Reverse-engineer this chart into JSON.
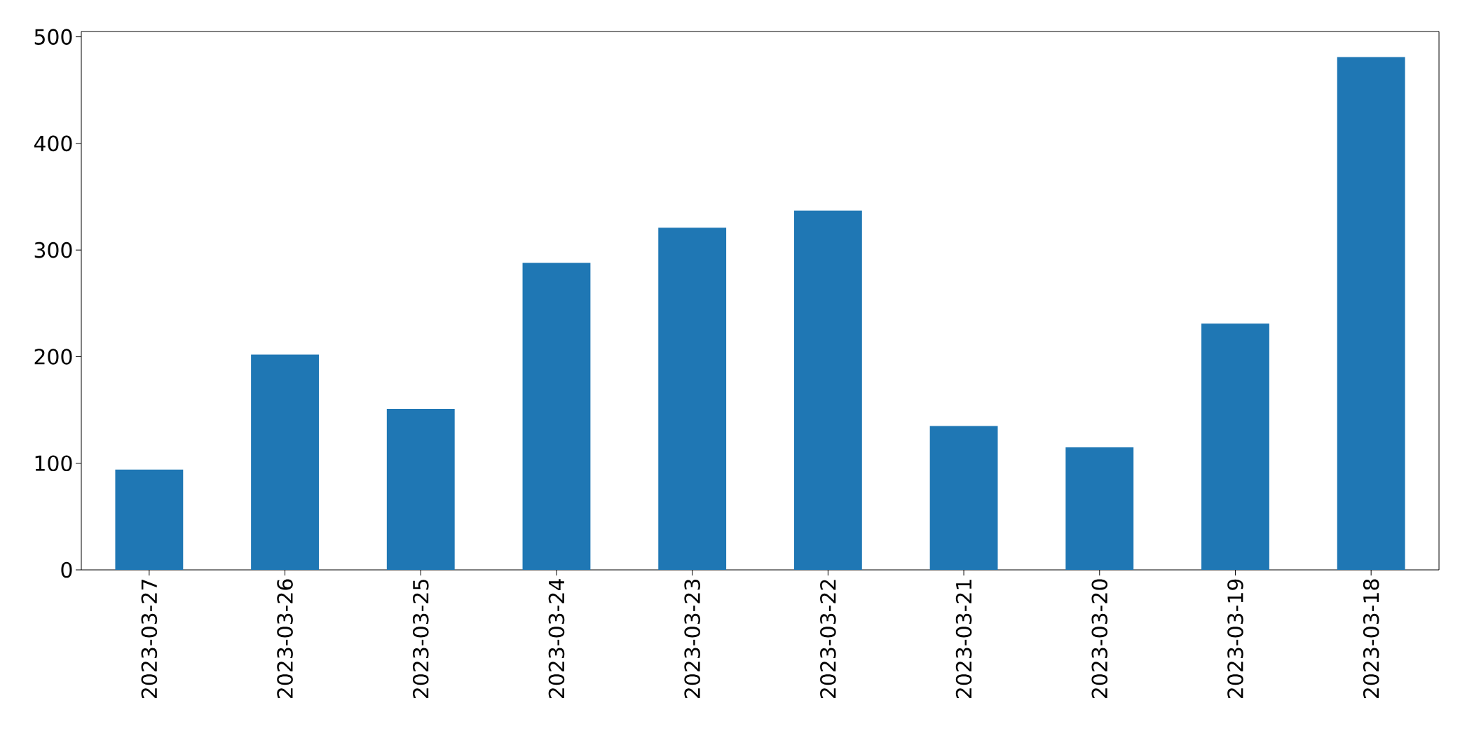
{
  "chart_data": {
    "type": "bar",
    "categories": [
      "2023-03-27",
      "2023-03-26",
      "2023-03-25",
      "2023-03-24",
      "2023-03-23",
      "2023-03-22",
      "2023-03-21",
      "2023-03-20",
      "2023-03-19",
      "2023-03-18"
    ],
    "values": [
      94,
      202,
      151,
      288,
      321,
      337,
      135,
      115,
      231,
      481
    ],
    "color": "#1f77b4",
    "ylim": [
      0,
      505
    ],
    "yticks": [
      0,
      100,
      200,
      300,
      400,
      500
    ]
  }
}
